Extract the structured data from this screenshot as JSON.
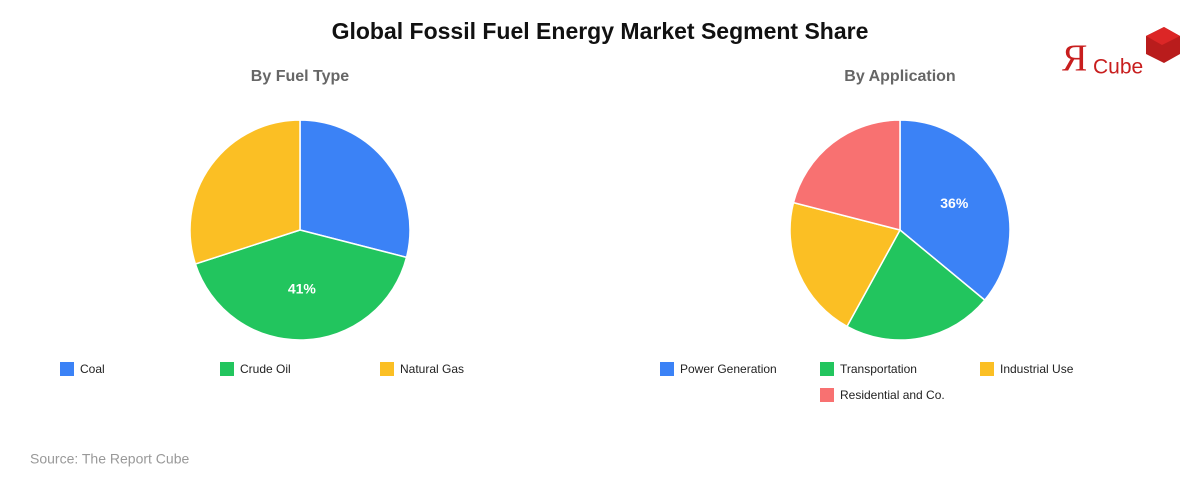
{
  "title": "Global Fossil Fuel Energy Market Segment Share",
  "logo": {
    "mark": "Я",
    "text": "Cube"
  },
  "source": "Source: The Report Cube",
  "chart_data": [
    {
      "type": "pie",
      "title": "By Fuel Type",
      "categories": [
        "Coal",
        "Crude Oil",
        "Natural Gas"
      ],
      "values": [
        29,
        41,
        30
      ],
      "value_labels": [
        null,
        "41%",
        null
      ],
      "colors": [
        "#3b82f6",
        "#22c55e",
        "#fbbf24"
      ]
    },
    {
      "type": "pie",
      "title": "By Application",
      "categories": [
        "Power Generation",
        "Transportation",
        "Industrial Use",
        "Residential and Co."
      ],
      "values": [
        36,
        22,
        21,
        21
      ],
      "value_labels": [
        "36%",
        null,
        null,
        null
      ],
      "colors": [
        "#3b82f6",
        "#22c55e",
        "#fbbf24",
        "#f87171"
      ]
    }
  ]
}
